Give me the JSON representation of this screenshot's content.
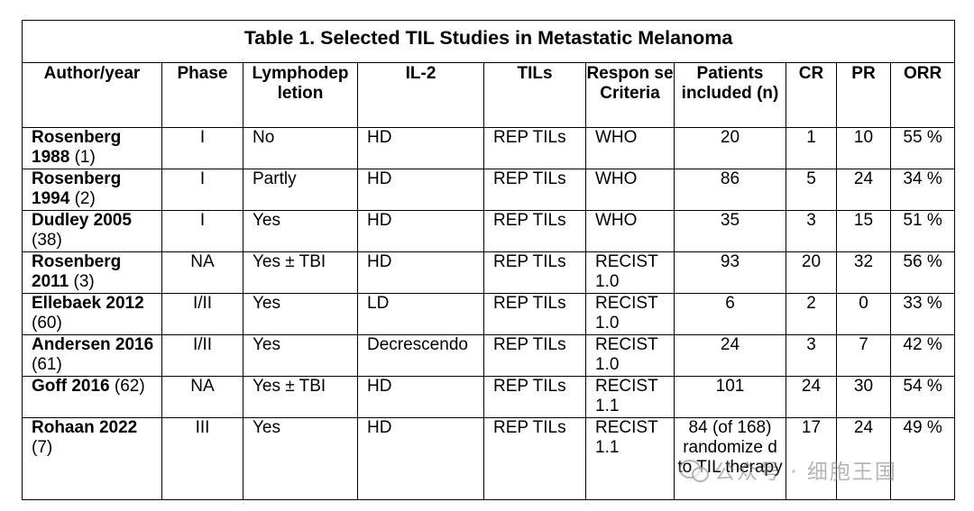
{
  "title": "Table 1. Selected TIL Studies in Metastatic Melanoma",
  "headers": [
    "Author/year",
    "Phase",
    "Lymphodep letion",
    "IL-2",
    "TILs",
    "Respon se Criteria",
    "Patients included (n)",
    "CR",
    "PR",
    "ORR"
  ],
  "rows": [
    {
      "author": "Rosenberg 1988",
      "ref": "(1)",
      "phase": "I",
      "lympho": "No",
      "il2": "HD",
      "tils": "REP TILs",
      "criteria": "WHO",
      "patients": "20",
      "cr": "1",
      "pr": "10",
      "orr": "55 %"
    },
    {
      "author": "Rosenberg 1994",
      "ref": "(2)",
      "phase": "I",
      "lympho": "Partly",
      "il2": "HD",
      "tils": "REP TILs",
      "criteria": "WHO",
      "patients": "86",
      "cr": "5",
      "pr": "24",
      "orr": "34 %"
    },
    {
      "author": "Dudley 2005",
      "ref": "(38)",
      "phase": "I",
      "lympho": "Yes",
      "il2": "HD",
      "tils": "REP TILs",
      "criteria": "WHO",
      "patients": "35",
      "cr": "3",
      "pr": "15",
      "orr": "51 %"
    },
    {
      "author": "Rosenberg 2011",
      "ref": "(3)",
      "phase": "NA",
      "lympho": "Yes ± TBI",
      "il2": "HD",
      "tils": "REP TILs",
      "criteria": "RECIST 1.0",
      "patients": "93",
      "cr": "20",
      "pr": "32",
      "orr": "56 %"
    },
    {
      "author": "Ellebaek 2012",
      "ref": "(60)",
      "phase": "I/II",
      "lympho": "Yes",
      "il2": "LD",
      "tils": "REP TILs",
      "criteria": "RECIST 1.0",
      "patients": "6",
      "cr": "2",
      "pr": "0",
      "orr": "33 %"
    },
    {
      "author": "Andersen 2016",
      "ref": "(61)",
      "phase": "I/II",
      "lympho": "Yes",
      "il2": "Decrescendo",
      "tils": "REP TILs",
      "criteria": "RECIST 1.0",
      "patients": "24",
      "cr": "3",
      "pr": "7",
      "orr": "42 %"
    },
    {
      "author": "Goff 2016",
      "ref": "(62)",
      "phase": "NA",
      "lympho": "Yes ± TBI",
      "il2": "HD",
      "tils": "REP TILs",
      "criteria": "RECIST 1.1",
      "patients": "101",
      "cr": "24",
      "pr": "30",
      "orr": "54 %"
    },
    {
      "author": "Rohaan 2022",
      "ref": "(7)",
      "phase": "III",
      "lympho": "Yes",
      "il2": "HD",
      "tils": "REP TILs",
      "criteria": "RECIST 1.1",
      "patients": "84 (of 168) randomize d to TIL therapy",
      "cr": "17",
      "pr": "24",
      "orr": "49 %"
    }
  ],
  "watermark": "公众号 · 细胞王国"
}
